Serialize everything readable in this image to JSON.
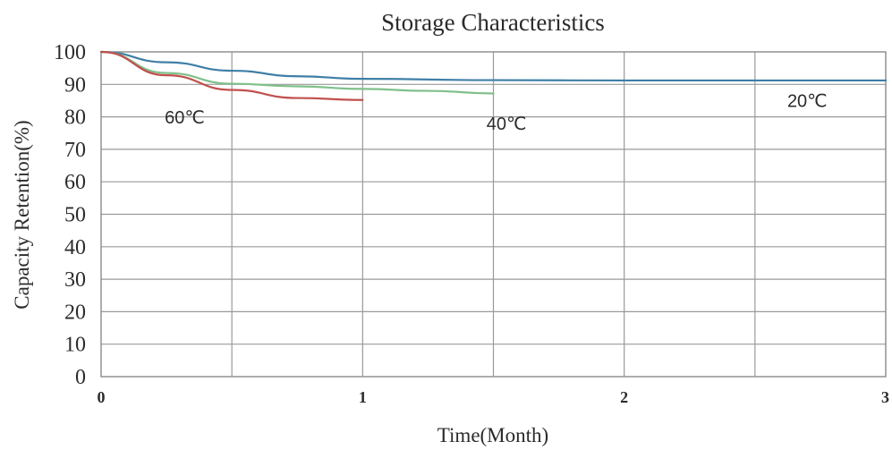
{
  "chart_data": {
    "type": "line",
    "title": "Storage Characteristics",
    "xlabel": "Time(Month)",
    "ylabel": "Capacity Retention(%)",
    "xlim": [
      0,
      3
    ],
    "ylim": [
      0,
      100
    ],
    "x_ticks": [
      0,
      1,
      2,
      3
    ],
    "x_tick_labels": [
      "0",
      "1",
      "2",
      "3"
    ],
    "y_ticks": [
      0,
      10,
      20,
      30,
      40,
      50,
      60,
      70,
      80,
      90,
      100
    ],
    "y_tick_labels": [
      "0",
      "10",
      "20",
      "30",
      "40",
      "50",
      "60",
      "70",
      "80",
      "90",
      "100"
    ],
    "x_gridlines": [
      0.5,
      1,
      1.5,
      2,
      2.5
    ],
    "grid": true,
    "series": [
      {
        "color": "#3f7fa6",
        "x": [
          0,
          0.25,
          0.5,
          0.75,
          1.0,
          1.5,
          2.0,
          2.5,
          3.0
        ],
        "y": [
          100,
          96.8,
          94.2,
          92.5,
          91.7,
          91.3,
          91.2,
          91.2,
          91.2
        ]
      },
      {
        "color": "#7fc08a",
        "x": [
          0,
          0.25,
          0.5,
          0.75,
          1.0,
          1.25,
          1.5
        ],
        "y": [
          100,
          93.5,
          90.2,
          89.4,
          88.6,
          88.0,
          87.2
        ]
      },
      {
        "color": "#c0504d",
        "x": [
          0,
          0.25,
          0.5,
          0.75,
          1.0
        ],
        "y": [
          100,
          92.8,
          88.3,
          85.8,
          85.2
        ]
      }
    ],
    "annotations": [
      {
        "text": "60℃",
        "x": 0.32,
        "y": 78
      },
      {
        "text": "40℃",
        "x": 1.55,
        "y": 76
      },
      {
        "text": "20℃",
        "x": 2.7,
        "y": 83
      }
    ]
  }
}
